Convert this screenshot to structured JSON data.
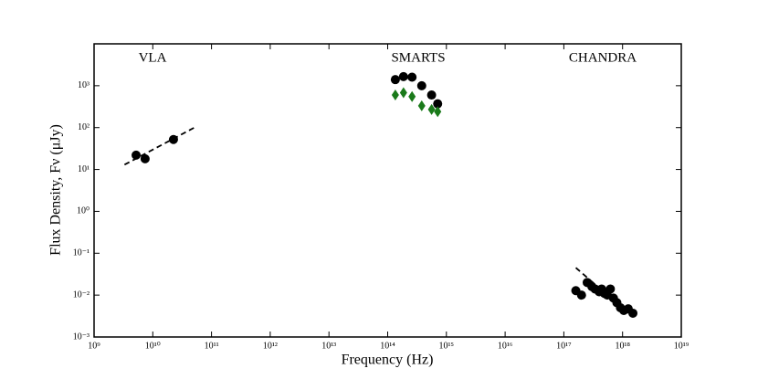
{
  "chart_data": {
    "type": "scatter",
    "xlabel": "Frequency (Hz)",
    "ylabel": "Flux Density, Fν (μJy)",
    "xscale": "log",
    "yscale": "log",
    "xlim": [
      1000000000.0,
      1e+19
    ],
    "ylim": [
      0.001,
      10000
    ],
    "xticks": [
      {
        "value": 1000000000.0,
        "label": "10⁹"
      },
      {
        "value": 10000000000.0,
        "label": "10¹⁰"
      },
      {
        "value": 100000000000.0,
        "label": "10¹¹"
      },
      {
        "value": 1000000000000.0,
        "label": "10¹²"
      },
      {
        "value": 10000000000000.0,
        "label": "10¹³"
      },
      {
        "value": 100000000000000.0,
        "label": "10¹⁴"
      },
      {
        "value": 1000000000000000.0,
        "label": "10¹⁵"
      },
      {
        "value": 1e+16,
        "label": "10¹⁶"
      },
      {
        "value": 1e+17,
        "label": "10¹⁷"
      },
      {
        "value": 1e+18,
        "label": "10¹⁸"
      },
      {
        "value": 1e+19,
        "label": "10¹⁹"
      }
    ],
    "yticks": [
      {
        "value": 0.001,
        "label": "10⁻³"
      },
      {
        "value": 0.01,
        "label": "10⁻²"
      },
      {
        "value": 0.1,
        "label": "10⁻¹"
      },
      {
        "value": 1,
        "label": "10⁰"
      },
      {
        "value": 10,
        "label": "10¹"
      },
      {
        "value": 100,
        "label": "10²"
      },
      {
        "value": 1000,
        "label": "10³"
      }
    ],
    "annotations": [
      "VLA",
      "SMARTS",
      "CHANDRA"
    ],
    "series": [
      {
        "color": "#000000",
        "marker": "circle",
        "x": [
          5200000000.0,
          7400000000.0,
          22500000000.0
        ],
        "values": [
          22,
          18,
          52
        ]
      },
      {
        "color": "#000000",
        "style": "dashed",
        "x": [
          3300000000.0,
          51000000000.0
        ],
        "values": [
          13,
          100
        ]
      },
      {
        "color": "#000000",
        "marker": "circle",
        "x": [
          135000000000000.0,
          186000000000000.0,
          260000000000000.0,
          380000000000000.0,
          560000000000000.0,
          710000000000000.0
        ],
        "values": [
          1400,
          1650,
          1600,
          1000,
          600,
          370
        ]
      },
      {
        "color": "#1a7a1a",
        "marker": "diamond",
        "x": [
          135000000000000.0,
          186000000000000.0,
          260000000000000.0,
          380000000000000.0,
          560000000000000.0,
          710000000000000.0
        ],
        "values": [
          600,
          680,
          550,
          330,
          270,
          240
        ]
      },
      {
        "color": "#000000",
        "marker": "circle",
        "x": [
          1.6e+17,
          2e+17,
          2.5e+17,
          3e+17,
          3.4e+17,
          4e+17,
          4.4e+17,
          4.9e+17,
          5.5e+17,
          6.2e+17,
          7e+17,
          8e+17,
          9.2e+17,
          1.05e+18,
          1.25e+18,
          1.5e+18
        ],
        "values": [
          0.0128,
          0.01,
          0.02,
          0.016,
          0.014,
          0.012,
          0.014,
          0.011,
          0.01,
          0.014,
          0.0085,
          0.0066,
          0.005,
          0.0043,
          0.0047,
          0.0037
        ]
      },
      {
        "color": "#000000",
        "style": "dashed",
        "x": [
          1.6e+17,
          1.5e+18
        ],
        "values": [
          0.045,
          0.003
        ]
      }
    ]
  }
}
